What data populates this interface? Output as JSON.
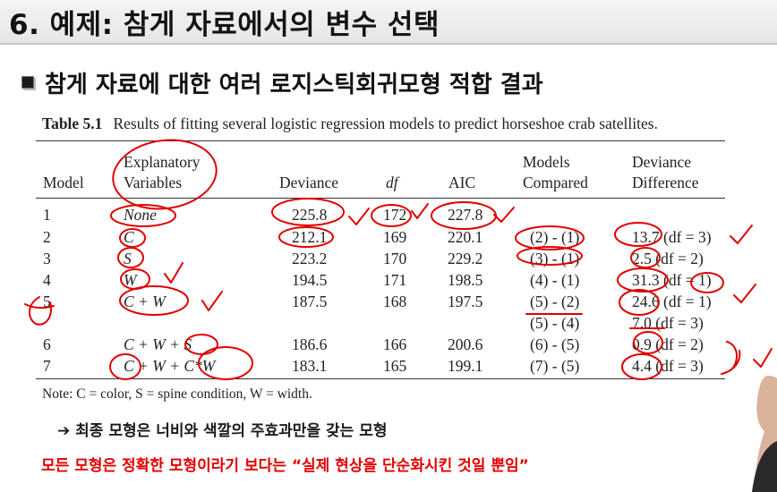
{
  "slide": {
    "title": "6. 예제: 참게 자료에서의 변수 선택",
    "subtitle": "참게 자료에 대한 여러 로지스틱회귀모형 적합 결과"
  },
  "table": {
    "label": "Table 5.1",
    "caption": "Results of fitting several logistic regression models to predict horseshoe crab satellites.",
    "headers": {
      "model": "Model",
      "explanatory_1": "Explanatory",
      "explanatory_2": "Variables",
      "deviance": "Deviance",
      "df": "df",
      "aic": "AIC",
      "compared_1": "Models",
      "compared_2": "Compared",
      "difference_1": "Deviance",
      "difference_2": "Difference"
    },
    "rows": [
      {
        "model": "1",
        "vars": "None",
        "deviance": "225.8",
        "df": "172",
        "aic": "227.8",
        "compared": "",
        "difference": ""
      },
      {
        "model": "2",
        "vars": "C",
        "deviance": "212.1",
        "df": "169",
        "aic": "220.1",
        "compared": "(2) - (1)",
        "difference": "13.7 (df = 3)"
      },
      {
        "model": "3",
        "vars": "S",
        "deviance": "223.2",
        "df": "170",
        "aic": "229.2",
        "compared": "(3) - (1)",
        "difference": "2.5 (df = 2)"
      },
      {
        "model": "4",
        "vars": "W",
        "deviance": "194.5",
        "df": "171",
        "aic": "198.5",
        "compared": "(4) - (1)",
        "difference": "31.3 (df = 1)"
      },
      {
        "model": "5",
        "vars": "C + W",
        "deviance": "187.5",
        "df": "168",
        "aic": "197.5",
        "compared": "(5) - (2)",
        "difference": "24.6 (df = 1)"
      },
      {
        "model": "",
        "vars": "",
        "deviance": "",
        "df": "",
        "aic": "",
        "compared": "(5) - (4)",
        "difference": "7.0 (df = 3)"
      },
      {
        "model": "6",
        "vars": "C + W + S",
        "deviance": "186.6",
        "df": "166",
        "aic": "200.6",
        "compared": "(6) - (5)",
        "difference": "0.9 (df = 2)"
      },
      {
        "model": "7",
        "vars": "C + W + C*W",
        "deviance": "183.1",
        "df": "165",
        "aic": "199.1",
        "compared": "(7) - (5)",
        "difference": "4.4 (df = 3)"
      }
    ],
    "note": "Note: C = color, S = spine condition, W = width."
  },
  "text": {
    "conclusion": "➔ 최종 모형은 너비와 색깔의 주효과만을 갖는 모형",
    "emphasis": "모든 모형은 정확한 모형이라기 보다는 “실제 현상을 단순화시킨 것일 뿐임”"
  },
  "colors": {
    "annotation_ink": "#e00000",
    "emphasis_text": "#e30000"
  }
}
